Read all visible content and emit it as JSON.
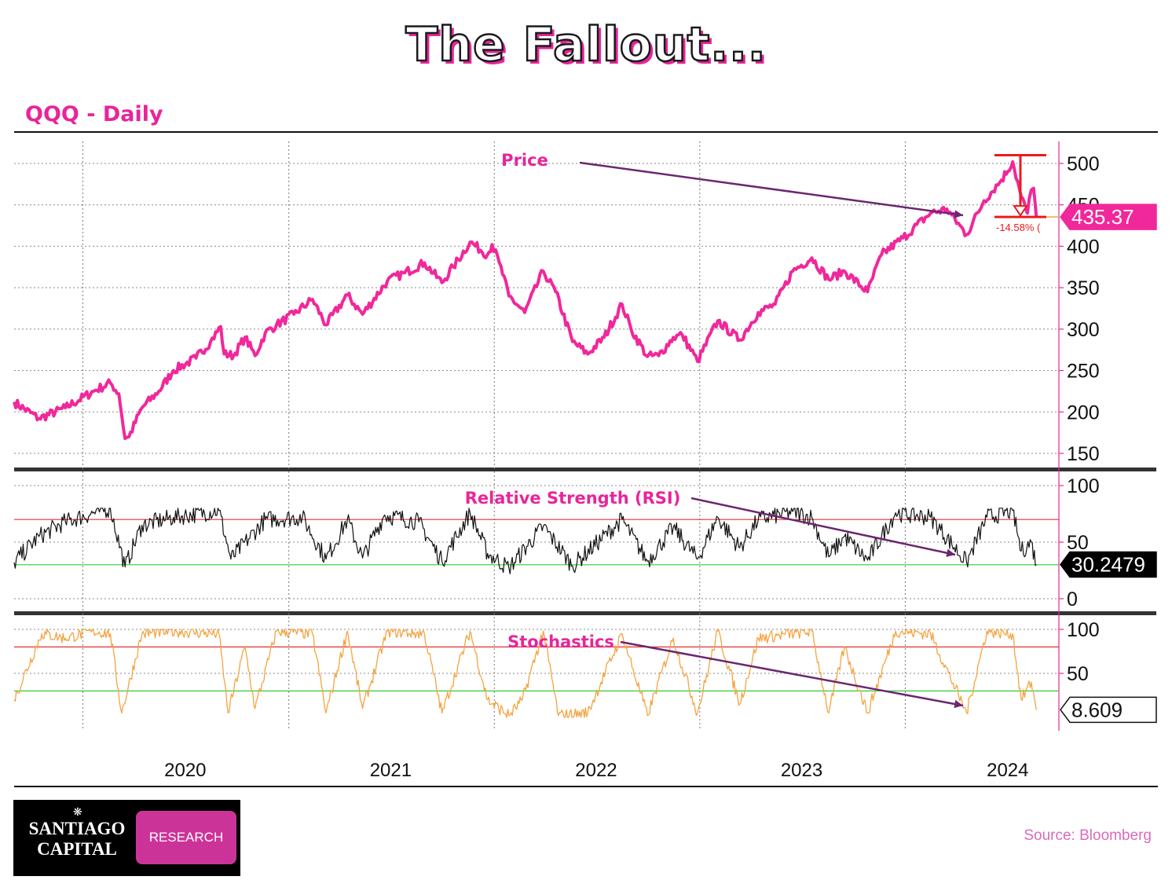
{
  "title": "The Fallout...",
  "subtitle": "QQQ - Daily",
  "source": "Source: Bloomberg",
  "logo": {
    "name_line1": "SANTIAGO",
    "name_line2": "CAPITAL",
    "badge": "RESEARCH"
  },
  "colors": {
    "accent": "#e8259a",
    "price": "#f0289b",
    "rsi": "#111111",
    "stoch": "#f5a340",
    "overbought": "#e03030",
    "oversold": "#33cc33",
    "arrow": "#6b2770",
    "drawdown": "#e81c1c"
  },
  "chart_data": [
    {
      "type": "line",
      "panel": "price",
      "series": [],
      "x_ticks": [
        "2020",
        "2021",
        "2022",
        "2023",
        "2024"
      ],
      "y_ticks": [
        150,
        200,
        250,
        300,
        350,
        400,
        450,
        500
      ],
      "ylim": [
        140,
        525
      ],
      "x_range": [
        "2019-09-01",
        "2024-09-30"
      ],
      "points": [
        [
          "2019-09-01",
          212
        ],
        [
          "2019-10-15",
          192
        ],
        [
          "2019-12-01",
          205
        ],
        [
          "2020-01-20",
          225
        ],
        [
          "2020-02-19",
          235
        ],
        [
          "2020-03-05",
          222
        ],
        [
          "2020-03-16",
          168
        ],
        [
          "2020-03-23",
          170
        ],
        [
          "2020-04-15",
          205
        ],
        [
          "2020-05-15",
          225
        ],
        [
          "2020-06-10",
          250
        ],
        [
          "2020-07-20",
          265
        ],
        [
          "2020-08-15",
          285
        ],
        [
          "2020-09-02",
          303
        ],
        [
          "2020-09-08",
          270
        ],
        [
          "2020-09-25",
          268
        ],
        [
          "2020-10-15",
          290
        ],
        [
          "2020-11-02",
          268
        ],
        [
          "2020-11-20",
          295
        ],
        [
          "2020-12-10",
          305
        ],
        [
          "2021-01-10",
          318
        ],
        [
          "2021-02-12",
          336
        ],
        [
          "2021-03-08",
          305
        ],
        [
          "2021-04-15",
          341
        ],
        [
          "2021-05-12",
          318
        ],
        [
          "2021-06-25",
          358
        ],
        [
          "2021-07-26",
          368
        ],
        [
          "2021-08-30",
          380
        ],
        [
          "2021-09-30",
          356
        ],
        [
          "2021-10-20",
          375
        ],
        [
          "2021-11-19",
          405
        ],
        [
          "2021-12-20",
          390
        ],
        [
          "2021-12-28",
          402
        ],
        [
          "2022-01-10",
          380
        ],
        [
          "2022-01-27",
          340
        ],
        [
          "2022-02-24",
          320
        ],
        [
          "2022-03-29",
          370
        ],
        [
          "2022-04-20",
          345
        ],
        [
          "2022-05-20",
          285
        ],
        [
          "2022-06-16",
          270
        ],
        [
          "2022-07-15",
          290
        ],
        [
          "2022-08-16",
          330
        ],
        [
          "2022-09-01",
          300
        ],
        [
          "2022-09-30",
          267
        ],
        [
          "2022-10-20",
          268
        ],
        [
          "2022-11-15",
          290
        ],
        [
          "2022-12-01",
          293
        ],
        [
          "2022-12-28",
          261
        ],
        [
          "2023-02-02",
          310
        ],
        [
          "2023-03-13",
          287
        ],
        [
          "2023-04-15",
          320
        ],
        [
          "2023-05-15",
          330
        ],
        [
          "2023-06-15",
          370
        ],
        [
          "2023-07-19",
          386
        ],
        [
          "2023-08-18",
          360
        ],
        [
          "2023-09-15",
          370
        ],
        [
          "2023-10-26",
          345
        ],
        [
          "2023-11-20",
          390
        ],
        [
          "2023-12-28",
          410
        ],
        [
          "2024-02-15",
          440
        ],
        [
          "2024-03-15",
          445
        ],
        [
          "2024-04-19",
          414
        ],
        [
          "2024-05-20",
          455
        ],
        [
          "2024-06-20",
          480
        ],
        [
          "2024-07-10",
          502
        ],
        [
          "2024-07-25",
          460
        ],
        [
          "2024-08-05",
          440
        ],
        [
          "2024-08-12",
          468
        ],
        [
          "2024-08-16",
          470
        ],
        [
          "2024-08-21",
          435.37
        ]
      ],
      "last_value_label": "435.37",
      "drawdown": {
        "from": 510,
        "to": 435.37,
        "label": "-14.58% ("
      },
      "annotations": [
        {
          "text": "Price"
        }
      ]
    },
    {
      "type": "line",
      "panel": "rsi",
      "series": [],
      "y_ticks": [
        0,
        50,
        100
      ],
      "ylim": [
        -5,
        107
      ],
      "levels": [
        70,
        30
      ],
      "points": [
        [
          "2019-09-01",
          32
        ],
        [
          "2019-10-15",
          55
        ],
        [
          "2019-12-01",
          68
        ],
        [
          "2020-01-15",
          75
        ],
        [
          "2020-02-19",
          80
        ],
        [
          "2020-03-16",
          28
        ],
        [
          "2020-04-15",
          65
        ],
        [
          "2020-06-10",
          72
        ],
        [
          "2020-08-30",
          78
        ],
        [
          "2020-09-20",
          35
        ],
        [
          "2020-11-20",
          70
        ],
        [
          "2021-01-25",
          72
        ],
        [
          "2021-03-08",
          35
        ],
        [
          "2021-04-15",
          70
        ],
        [
          "2021-05-12",
          36
        ],
        [
          "2021-06-20",
          74
        ],
        [
          "2021-08-20",
          68
        ],
        [
          "2021-09-30",
          33
        ],
        [
          "2021-11-19",
          76
        ],
        [
          "2021-12-20",
          40
        ],
        [
          "2022-01-27",
          27
        ],
        [
          "2022-03-29",
          64
        ],
        [
          "2022-05-20",
          29
        ],
        [
          "2022-08-16",
          70
        ],
        [
          "2022-09-30",
          33
        ],
        [
          "2022-11-15",
          63
        ],
        [
          "2022-12-28",
          35
        ],
        [
          "2023-02-02",
          72
        ],
        [
          "2023-03-13",
          45
        ],
        [
          "2023-04-15",
          70
        ],
        [
          "2023-06-15",
          77
        ],
        [
          "2023-07-19",
          72
        ],
        [
          "2023-08-18",
          37
        ],
        [
          "2023-09-15",
          55
        ],
        [
          "2023-10-26",
          34
        ],
        [
          "2023-12-15",
          76
        ],
        [
          "2024-02-15",
          72
        ],
        [
          "2024-04-19",
          32
        ],
        [
          "2024-05-25",
          72
        ],
        [
          "2024-07-10",
          78
        ],
        [
          "2024-07-25",
          42
        ],
        [
          "2024-08-12",
          50
        ],
        [
          "2024-08-21",
          30.25
        ]
      ],
      "last_value_label": "30.2479",
      "annotations": [
        {
          "text": "Relative Strength (RSI)"
        }
      ]
    },
    {
      "type": "line",
      "panel": "stochastics",
      "series": [],
      "y_ticks": [
        50,
        100
      ],
      "ylim": [
        -20,
        108
      ],
      "levels": [
        80,
        30
      ],
      "points": [
        [
          "2019-09-01",
          20
        ],
        [
          "2019-10-20",
          95
        ],
        [
          "2019-12-01",
          90
        ],
        [
          "2020-01-20",
          98
        ],
        [
          "2020-02-19",
          95
        ],
        [
          "2020-03-10",
          5
        ],
        [
          "2020-04-15",
          95
        ],
        [
          "2020-06-15",
          98
        ],
        [
          "2020-08-30",
          95
        ],
        [
          "2020-09-15",
          5
        ],
        [
          "2020-10-15",
          80
        ],
        [
          "2020-11-02",
          10
        ],
        [
          "2020-12-10",
          98
        ],
        [
          "2021-02-12",
          95
        ],
        [
          "2021-03-08",
          5
        ],
        [
          "2021-04-15",
          98
        ],
        [
          "2021-05-12",
          10
        ],
        [
          "2021-06-25",
          98
        ],
        [
          "2021-08-30",
          95
        ],
        [
          "2021-09-30",
          5
        ],
        [
          "2021-11-19",
          98
        ],
        [
          "2021-12-20",
          20
        ],
        [
          "2022-01-27",
          2
        ],
        [
          "2022-02-20",
          20
        ],
        [
          "2022-03-29",
          98
        ],
        [
          "2022-04-25",
          2
        ],
        [
          "2022-06-16",
          5
        ],
        [
          "2022-08-16",
          95
        ],
        [
          "2022-09-30",
          2
        ],
        [
          "2022-11-15",
          90
        ],
        [
          "2022-12-28",
          5
        ],
        [
          "2023-02-02",
          98
        ],
        [
          "2023-03-13",
          15
        ],
        [
          "2023-04-15",
          90
        ],
        [
          "2023-07-19",
          98
        ],
        [
          "2023-08-18",
          5
        ],
        [
          "2023-09-15",
          80
        ],
        [
          "2023-10-26",
          5
        ],
        [
          "2023-12-15",
          98
        ],
        [
          "2024-02-15",
          95
        ],
        [
          "2024-04-19",
          5
        ],
        [
          "2024-05-25",
          98
        ],
        [
          "2024-07-10",
          95
        ],
        [
          "2024-07-25",
          20
        ],
        [
          "2024-08-12",
          40
        ],
        [
          "2024-08-21",
          8.609
        ]
      ],
      "last_value_label": "8.609",
      "annotations": [
        {
          "text": "Stochastics"
        }
      ]
    }
  ]
}
